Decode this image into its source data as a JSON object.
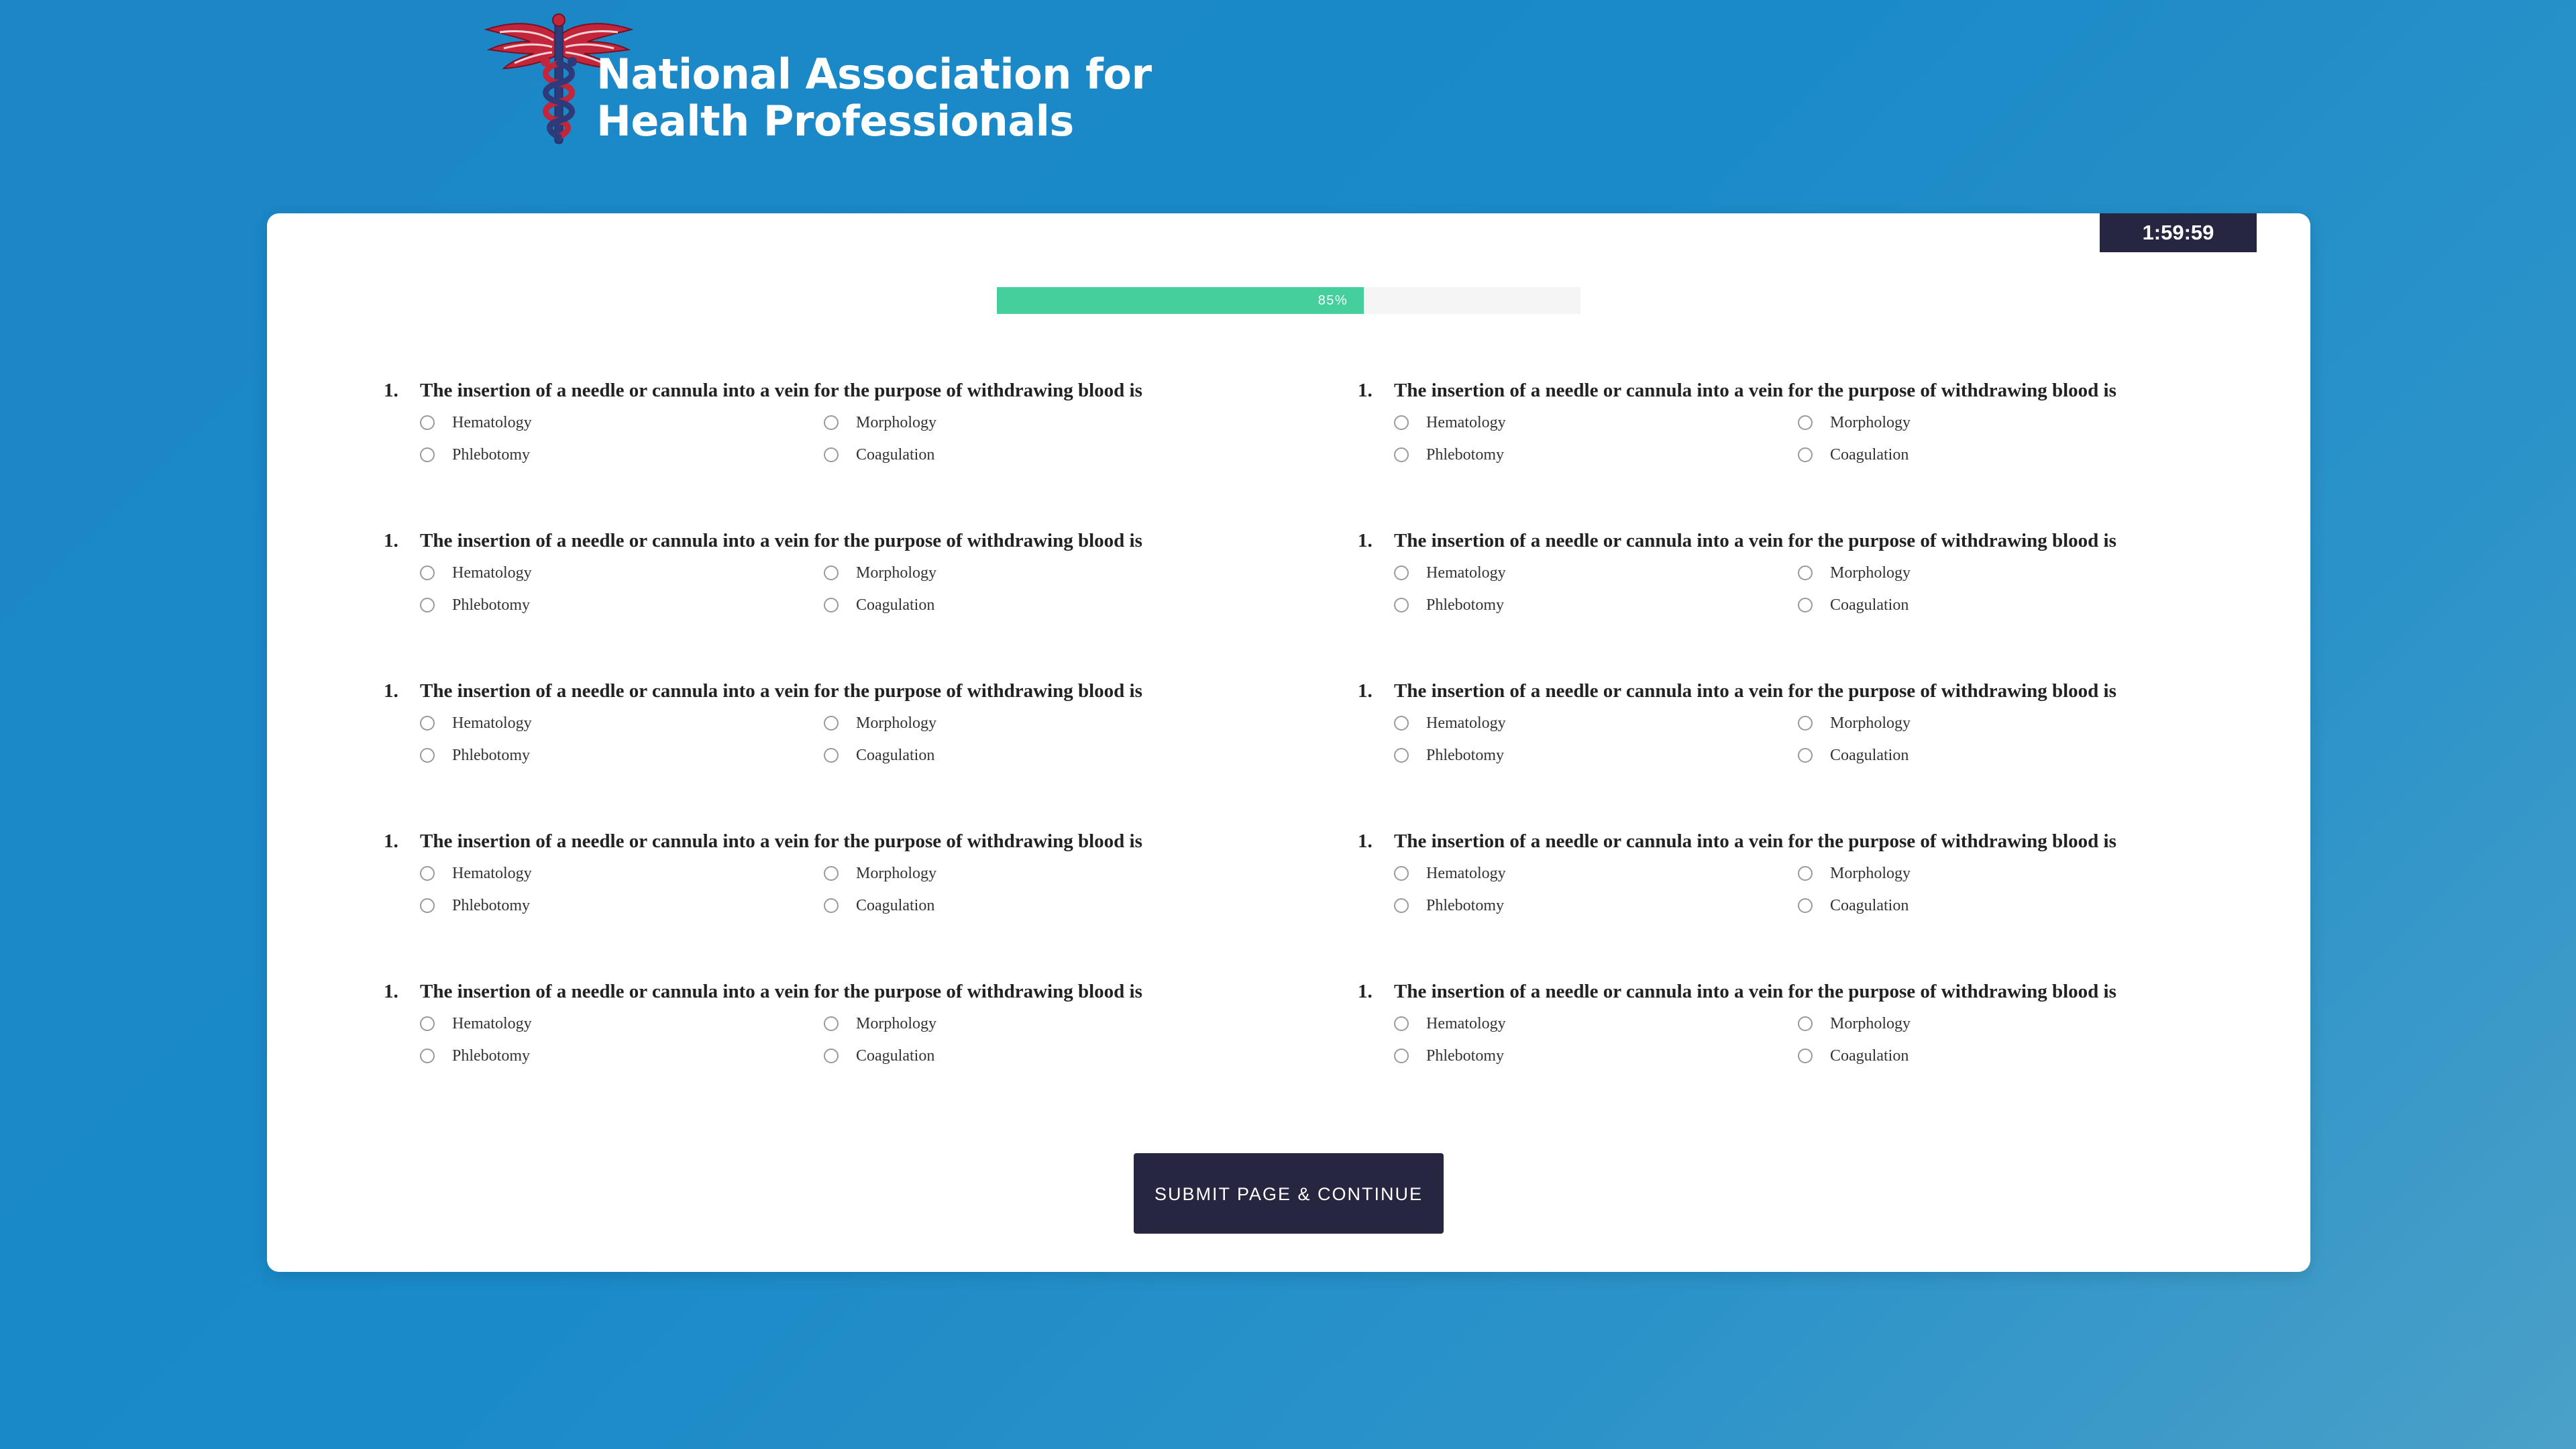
{
  "header": {
    "logo_icon": "caduceus-icon",
    "org_name_line1": "National Association for",
    "org_name_line2": "Health Professionals"
  },
  "timer": {
    "value": "1:59:59"
  },
  "progress": {
    "percent": 85,
    "label": "85%",
    "color": "#44cf9c"
  },
  "questions": [
    {
      "number": "1.",
      "text": "The insertion of a needle or cannula into a vein for the purpose of withdrawing blood is",
      "options": [
        "Hematology",
        "Morphology",
        "Phlebotomy",
        "Coagulation"
      ]
    },
    {
      "number": "1.",
      "text": "The insertion of a needle or cannula into a vein for the purpose of withdrawing blood is",
      "options": [
        "Hematology",
        "Morphology",
        "Phlebotomy",
        "Coagulation"
      ]
    },
    {
      "number": "1.",
      "text": "The insertion of a needle or cannula into a vein for the purpose of withdrawing blood is",
      "options": [
        "Hematology",
        "Morphology",
        "Phlebotomy",
        "Coagulation"
      ]
    },
    {
      "number": "1.",
      "text": "The insertion of a needle or cannula into a vein for the purpose of withdrawing blood is",
      "options": [
        "Hematology",
        "Morphology",
        "Phlebotomy",
        "Coagulation"
      ]
    },
    {
      "number": "1.",
      "text": "The insertion of a needle or cannula into a vein for the purpose of withdrawing blood is",
      "options": [
        "Hematology",
        "Morphology",
        "Phlebotomy",
        "Coagulation"
      ]
    },
    {
      "number": "1.",
      "text": "The insertion of a needle or cannula into a vein for the purpose of withdrawing blood is",
      "options": [
        "Hematology",
        "Morphology",
        "Phlebotomy",
        "Coagulation"
      ]
    },
    {
      "number": "1.",
      "text": "The insertion of a needle or cannula into a vein for the purpose of withdrawing blood is",
      "options": [
        "Hematology",
        "Morphology",
        "Phlebotomy",
        "Coagulation"
      ]
    },
    {
      "number": "1.",
      "text": "The insertion of a needle or cannula into a vein for the purpose of withdrawing blood is",
      "options": [
        "Hematology",
        "Morphology",
        "Phlebotomy",
        "Coagulation"
      ]
    },
    {
      "number": "1.",
      "text": "The insertion of a needle or cannula into a vein for the purpose of withdrawing blood is",
      "options": [
        "Hematology",
        "Morphology",
        "Phlebotomy",
        "Coagulation"
      ]
    },
    {
      "number": "1.",
      "text": "The insertion of a needle or cannula into a vein for the purpose of withdrawing blood is",
      "options": [
        "Hematology",
        "Morphology",
        "Phlebotomy",
        "Coagulation"
      ]
    }
  ],
  "submit": {
    "label": "SUBMIT PAGE & CONTINUE"
  },
  "colors": {
    "accent_dark": "#262641",
    "background": "#1a8ac8",
    "progress": "#44cf9c"
  }
}
